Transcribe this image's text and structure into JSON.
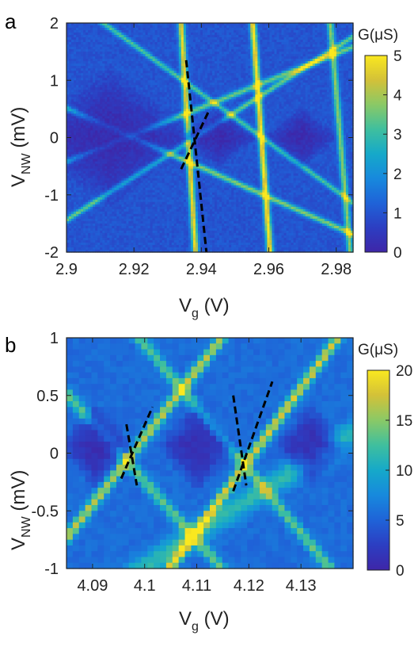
{
  "colors": {
    "bg": "#ffffff",
    "axis": "#222222",
    "cmap": [
      "#3e26a8",
      "#2c3ec2",
      "#1f63d8",
      "#1789dd",
      "#16a9c9",
      "#3fbf9e",
      "#8ac966",
      "#d3c138",
      "#fae81f"
    ]
  },
  "chart_data": [
    {
      "type": "heatmap",
      "panel_label": "a",
      "xlabel": "V",
      "xlabel_sub": "g",
      "xlabel_unit": " (V)",
      "ylabel": "V",
      "ylabel_sub": "NW",
      "ylabel_unit": " (mV)",
      "xlim": [
        2.9,
        2.985
      ],
      "ylim": [
        -2,
        2
      ],
      "xticks": [
        2.9,
        2.92,
        2.94,
        2.96,
        2.98
      ],
      "xtick_labels": [
        "2.9",
        "2.92",
        "2.94",
        "2.96",
        "2.98"
      ],
      "yticks": [
        -2,
        -1,
        0,
        1,
        2
      ],
      "ytick_labels": [
        "-2",
        "-1",
        "0",
        "1",
        "2"
      ],
      "colorbar_label": "G(μS)",
      "colorbar_range": [
        0,
        5
      ],
      "colorbar_ticks": [
        0,
        1,
        2,
        3,
        4,
        5
      ],
      "colorbar_tick_labels": [
        "0",
        "1",
        "2",
        "3",
        "4",
        "5"
      ],
      "grid": false,
      "dashed_lines": [
        [
          [
            2.9355,
            1.35
          ],
          [
            2.9415,
            -2.0
          ]
        ],
        [
          [
            2.934,
            -0.55
          ],
          [
            2.9425,
            0.5
          ]
        ]
      ]
    },
    {
      "type": "heatmap",
      "panel_label": "b",
      "xlabel": "V",
      "xlabel_sub": "g",
      "xlabel_unit": " (V)",
      "ylabel": "V",
      "ylabel_sub": "NW",
      "ylabel_unit": " (mV)",
      "xlim": [
        4.085,
        4.14
      ],
      "ylim": [
        -1,
        1
      ],
      "xticks": [
        4.09,
        4.1,
        4.11,
        4.12,
        4.13
      ],
      "xtick_labels": [
        "4.09",
        "4.1",
        "4.11",
        "4.12",
        "4.13"
      ],
      "yticks": [
        -1,
        -0.5,
        0,
        0.5,
        1
      ],
      "ytick_labels": [
        "-1",
        "-0.5",
        "0",
        "0.5",
        "1"
      ],
      "colorbar_label": "G(μS)",
      "colorbar_range": [
        0,
        20
      ],
      "colorbar_ticks": [
        0,
        5,
        10,
        15,
        20
      ],
      "colorbar_tick_labels": [
        "0",
        "5",
        "10",
        "15",
        "20"
      ],
      "grid": false,
      "dashed_lines": [
        [
          [
            4.0965,
            0.25
          ],
          [
            4.0985,
            -0.28
          ]
        ],
        [
          [
            4.0955,
            -0.22
          ],
          [
            4.1015,
            0.4
          ]
        ],
        [
          [
            4.117,
            0.5
          ],
          [
            4.1195,
            -0.28
          ]
        ],
        [
          [
            4.117,
            -0.33
          ],
          [
            4.1245,
            0.62
          ]
        ]
      ]
    }
  ]
}
